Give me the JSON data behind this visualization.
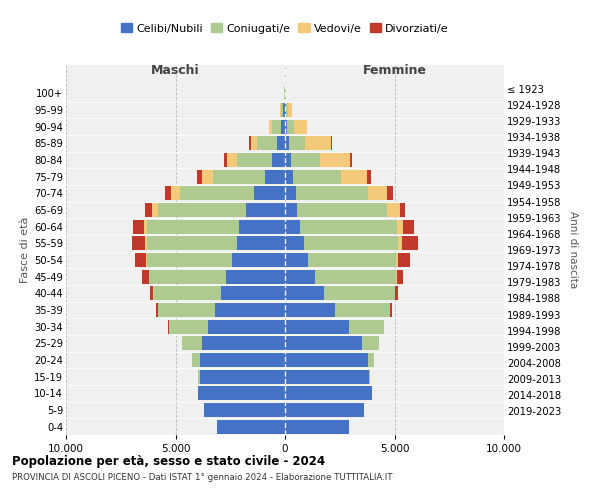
{
  "age_groups": [
    "0-4",
    "5-9",
    "10-14",
    "15-19",
    "20-24",
    "25-29",
    "30-34",
    "35-39",
    "40-44",
    "45-49",
    "50-54",
    "55-59",
    "60-64",
    "65-69",
    "70-74",
    "75-79",
    "80-84",
    "85-89",
    "90-94",
    "95-99",
    "100+"
  ],
  "birth_years": [
    "2019-2023",
    "2014-2018",
    "2009-2013",
    "2004-2008",
    "1999-2003",
    "1994-1998",
    "1989-1993",
    "1984-1988",
    "1979-1983",
    "1974-1978",
    "1969-1973",
    "1964-1968",
    "1959-1963",
    "1954-1958",
    "1949-1953",
    "1944-1948",
    "1939-1943",
    "1934-1938",
    "1929-1933",
    "1924-1928",
    "≤ 1923"
  ],
  "colors": {
    "celibe": "#4472C4",
    "coniugato": "#AECA91",
    "vedovo": "#F5C97A",
    "divorziato": "#C0392B"
  },
  "maschi": {
    "celibe": [
      3100,
      3700,
      3950,
      3900,
      3900,
      3800,
      3500,
      3200,
      2900,
      2700,
      2400,
      2200,
      2100,
      1800,
      1400,
      900,
      600,
      380,
      200,
      80,
      20
    ],
    "coniugato": [
      5,
      10,
      20,
      50,
      350,
      900,
      1800,
      2600,
      3100,
      3500,
      3900,
      4100,
      4200,
      4000,
      3400,
      2400,
      1600,
      900,
      400,
      80,
      20
    ],
    "vedovo": [
      0,
      0,
      0,
      0,
      5,
      5,
      10,
      15,
      20,
      30,
      50,
      80,
      150,
      280,
      420,
      500,
      450,
      280,
      120,
      60,
      10
    ],
    "divorziato": [
      0,
      0,
      0,
      0,
      5,
      10,
      30,
      80,
      160,
      280,
      480,
      620,
      480,
      300,
      280,
      200,
      150,
      80,
      20,
      5,
      2
    ]
  },
  "femmine": {
    "nubile": [
      2900,
      3600,
      3950,
      3850,
      3800,
      3500,
      2900,
      2300,
      1800,
      1350,
      1050,
      850,
      700,
      550,
      480,
      350,
      280,
      200,
      100,
      50,
      15
    ],
    "coniugata": [
      2,
      5,
      15,
      40,
      250,
      800,
      1600,
      2500,
      3200,
      3700,
      4000,
      4300,
      4400,
      4100,
      3300,
      2200,
      1300,
      700,
      300,
      80,
      15
    ],
    "vedova": [
      0,
      0,
      0,
      0,
      5,
      5,
      10,
      15,
      30,
      50,
      100,
      180,
      300,
      600,
      900,
      1200,
      1400,
      1200,
      600,
      200,
      30
    ],
    "divorziata": [
      0,
      0,
      0,
      0,
      5,
      10,
      25,
      60,
      130,
      280,
      580,
      750,
      500,
      250,
      250,
      180,
      100,
      50,
      15,
      5,
      2
    ]
  },
  "title": "Popolazione per età, sesso e stato civile - 2024",
  "subtitle": "PROVINCIA DI ASCOLI PICENO - Dati ISTAT 1° gennaio 2024 - Elaborazione TUTTITALIA.IT",
  "xlabel_left": "Maschi",
  "xlabel_right": "Femmine",
  "ylabel": "Fasce di età",
  "ylabel_right": "Anni di nascita",
  "xlim": 10000,
  "bg_color": "#f0f0f0",
  "grid_color": "#cccccc",
  "legend_labels": [
    "Celibi/Nubili",
    "Coniugati/e",
    "Vedovi/e",
    "Divorziati/e"
  ]
}
